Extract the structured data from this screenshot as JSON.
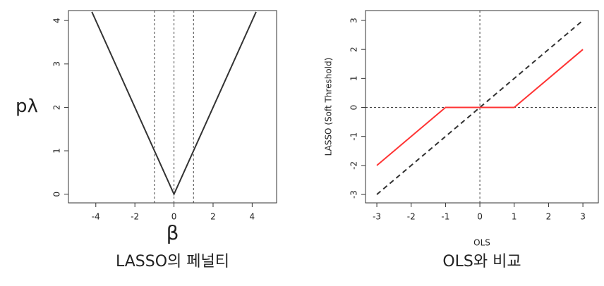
{
  "chart_data": [
    {
      "type": "line",
      "caption": "LASSO의 페널티",
      "xlabel": "β",
      "ylabel": "pλ",
      "x": [
        -4.2,
        0,
        4.2
      ],
      "series": [
        {
          "color": "#333333",
          "dash": false,
          "values": [
            4.2,
            0,
            4.2
          ]
        }
      ],
      "vlines": [
        -1,
        0,
        1
      ],
      "hlines": [],
      "xlim": [
        -5.4,
        5.25
      ],
      "ylim": [
        -0.2,
        4.23
      ],
      "xticks": [
        -4,
        -2,
        0,
        2,
        4
      ],
      "yticks": [
        0,
        1,
        2,
        3,
        4
      ]
    },
    {
      "type": "line",
      "caption": "OLS와 비교",
      "xlabel": "OLS",
      "ylabel": "LASSO (Soft Threshold)",
      "x": [
        -3,
        -1,
        0,
        1,
        3
      ],
      "series": [
        {
          "color": "#333333",
          "dash": true,
          "values": [
            -3,
            -1,
            0,
            1,
            3
          ]
        },
        {
          "color": "#ff3333",
          "dash": false,
          "values": [
            -2,
            0,
            0,
            0,
            2
          ]
        }
      ],
      "vlines": [
        0
      ],
      "hlines": [
        0
      ],
      "xlim": [
        -3.33,
        3.45
      ],
      "ylim": [
        -3.29,
        3.34
      ],
      "xticks": [
        -3,
        -2,
        -1,
        0,
        1,
        2,
        3
      ],
      "yticks": [
        -3,
        -2,
        -1,
        0,
        1,
        2,
        3
      ]
    }
  ]
}
